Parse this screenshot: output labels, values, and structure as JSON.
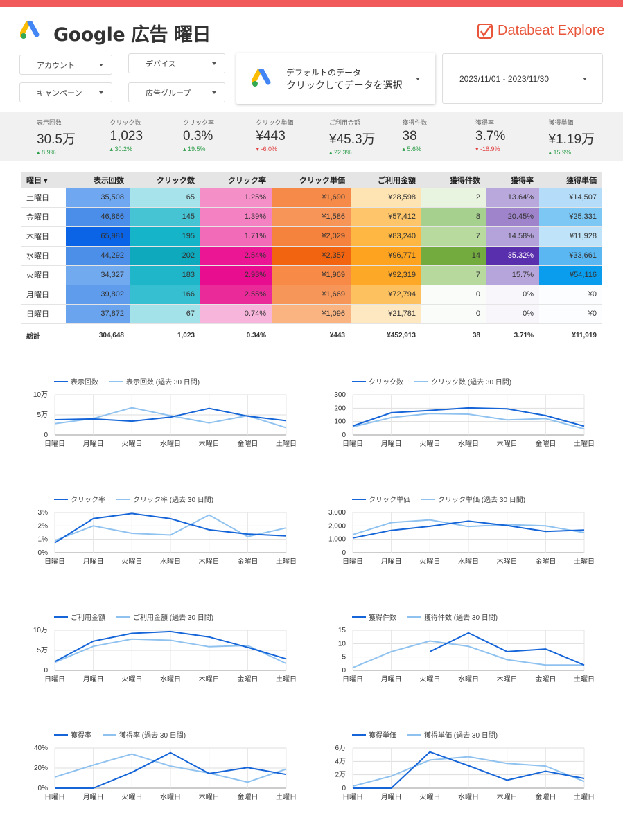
{
  "header": {
    "title": "Google 広告 曜日",
    "brand": "Databeat Explore"
  },
  "filters": {
    "account": "アカウント",
    "device": "デバイス",
    "campaign": "キャンペーン",
    "adgroup": "広告グループ"
  },
  "datasource": {
    "line1": "デフォルトのデータ",
    "line2": "クリックしてデータを選択"
  },
  "date_range": "2023/11/01 - 2023/11/30",
  "kpis": [
    {
      "label": "表示回数",
      "value": "30.5万",
      "delta": "8.9%",
      "dir": "up"
    },
    {
      "label": "クリック数",
      "value": "1,023",
      "delta": "30.2%",
      "dir": "up"
    },
    {
      "label": "クリック率",
      "value": "0.3%",
      "delta": "19.5%",
      "dir": "up"
    },
    {
      "label": "クリック単価",
      "value": "¥443",
      "delta": "-6.0%",
      "dir": "down"
    },
    {
      "label": "ご利用金額",
      "value": "¥45.3万",
      "delta": "22.3%",
      "dir": "up"
    },
    {
      "label": "獲得件数",
      "value": "38",
      "delta": "5.6%",
      "dir": "up"
    },
    {
      "label": "獲得率",
      "value": "3.7%",
      "delta": "-18.9%",
      "dir": "down"
    },
    {
      "label": "獲得単価",
      "value": "¥1.19万",
      "delta": "15.9%",
      "dir": "up"
    }
  ],
  "table": {
    "headers": [
      "曜日",
      "表示回数",
      "クリック数",
      "クリック率",
      "クリック単価",
      "ご利用金額",
      "獲得件数",
      "獲得率",
      "獲得単価"
    ],
    "sort_icon": "sort-desc-icon",
    "rows": [
      [
        "土曜日",
        "35,508",
        "65",
        "1.25%",
        "¥1,690",
        "¥28,598",
        "2",
        "13.64%",
        "¥14,507"
      ],
      [
        "金曜日",
        "46,866",
        "145",
        "1.39%",
        "¥1,586",
        "¥57,412",
        "8",
        "20.45%",
        "¥25,331"
      ],
      [
        "木曜日",
        "65,981",
        "195",
        "1.71%",
        "¥2,029",
        "¥83,240",
        "7",
        "14.58%",
        "¥11,928"
      ],
      [
        "水曜日",
        "44,292",
        "202",
        "2.54%",
        "¥2,357",
        "¥96,771",
        "14",
        "35.32%",
        "¥33,661"
      ],
      [
        "火曜日",
        "34,327",
        "183",
        "2.93%",
        "¥1,969",
        "¥92,319",
        "7",
        "15.7%",
        "¥54,116"
      ],
      [
        "月曜日",
        "39,802",
        "166",
        "2.55%",
        "¥1,669",
        "¥72,794",
        "0",
        "0%",
        "¥0"
      ],
      [
        "日曜日",
        "37,872",
        "67",
        "0.74%",
        "¥1,096",
        "¥21,781",
        "0",
        "0%",
        "¥0"
      ]
    ],
    "fills": [
      [
        "#6fa8f0",
        "#a6e3ea",
        "#f58fc8",
        "#f68b49",
        "#fee3b3",
        "#e8f3e0",
        "#b9a8dc",
        "#b5dcf8"
      ],
      [
        "#4a8ee9",
        "#47c4d4",
        "#f482c3",
        "#f79458",
        "#fec56a",
        "#a6d08e",
        "#9f83cb",
        "#7cc7f3"
      ],
      [
        "#0b63e6",
        "#15b4c8",
        "#f26bb9",
        "#f5823d",
        "#fdb742",
        "#b9da9f",
        "#b4a3da",
        "#bfe4f9"
      ],
      [
        "#4c8fe9",
        "#0ea9bd",
        "#ea1693",
        "#f26410",
        "#fda320",
        "#74ab3f",
        "#5a2fad",
        "#5ab7f1"
      ],
      [
        "#72aaf0",
        "#20b6c9",
        "#e80d8e",
        "#f68a46",
        "#fda827",
        "#b8d99d",
        "#b6a5da",
        "#0b9ded"
      ],
      [
        "#5f9dec",
        "#35bfd0",
        "#ea2a99",
        "#f79659",
        "#fec15f",
        "#fafcf9",
        "#f8f6fb",
        "#fbfdff"
      ],
      [
        "#6aa4ee",
        "#a4e2e9",
        "#f8b5db",
        "#f9b482",
        "#fee8c2",
        "#fafcf9",
        "#f8f6fb",
        "#fbfdff"
      ]
    ],
    "totals": [
      "総計",
      "304,648",
      "1,023",
      "0.34%",
      "¥443",
      "¥452,913",
      "38",
      "3.71%",
      "¥11,919"
    ]
  },
  "colors": {
    "current": "#1565d8",
    "previous": "#90c2f0",
    "topbar": "#f15a5a"
  },
  "chart_data": [
    {
      "type": "line",
      "x": [
        "日曜日",
        "月曜日",
        "火曜日",
        "水曜日",
        "木曜日",
        "金曜日",
        "土曜日"
      ],
      "ylim": [
        0,
        100000
      ],
      "yticks": [
        "0",
        "5万",
        "10万"
      ],
      "series": [
        {
          "name": "表示回数",
          "values": [
            37872,
            39802,
            34327,
            44292,
            65981,
            46866,
            35508
          ]
        },
        {
          "name": "表示回数 (過去 30 日間)",
          "values": [
            28000,
            41000,
            68000,
            48000,
            30000,
            48000,
            18000
          ]
        }
      ]
    },
    {
      "type": "line",
      "x": [
        "日曜日",
        "月曜日",
        "火曜日",
        "水曜日",
        "木曜日",
        "金曜日",
        "土曜日"
      ],
      "ylim": [
        0,
        300
      ],
      "yticks": [
        "0",
        "100",
        "200",
        "300"
      ],
      "series": [
        {
          "name": "クリック数",
          "values": [
            67,
            166,
            183,
            202,
            195,
            145,
            65
          ]
        },
        {
          "name": "クリック数 (過去 30 日間)",
          "values": [
            60,
            130,
            160,
            155,
            112,
            122,
            45
          ]
        }
      ]
    },
    {
      "type": "line",
      "x": [
        "日曜日",
        "月曜日",
        "火曜日",
        "水曜日",
        "木曜日",
        "金曜日",
        "土曜日"
      ],
      "ylim": [
        0,
        3
      ],
      "yticks": [
        "0%",
        "1%",
        "2%",
        "3%"
      ],
      "series": [
        {
          "name": "クリック率",
          "values": [
            0.74,
            2.55,
            2.93,
            2.54,
            1.71,
            1.39,
            1.25
          ]
        },
        {
          "name": "クリック率 (過去 30 日間)",
          "values": [
            0.9,
            2.0,
            1.45,
            1.32,
            2.82,
            1.2,
            1.85
          ]
        }
      ]
    },
    {
      "type": "line",
      "x": [
        "日曜日",
        "月曜日",
        "火曜日",
        "水曜日",
        "木曜日",
        "金曜日",
        "土曜日"
      ],
      "ylim": [
        0,
        3000
      ],
      "yticks": [
        "0",
        "1,000",
        "2,000",
        "3,000"
      ],
      "series": [
        {
          "name": "クリック単価",
          "values": [
            1096,
            1669,
            1969,
            2357,
            2029,
            1586,
            1690
          ]
        },
        {
          "name": "クリック単価 (過去 30 日間)",
          "values": [
            1350,
            2250,
            2450,
            1950,
            2100,
            2000,
            1500
          ]
        }
      ]
    },
    {
      "type": "line",
      "x": [
        "日曜日",
        "月曜日",
        "火曜日",
        "水曜日",
        "木曜日",
        "金曜日",
        "土曜日"
      ],
      "ylim": [
        0,
        100000
      ],
      "yticks": [
        "0",
        "5万",
        "10万"
      ],
      "series": [
        {
          "name": "ご利用金額",
          "values": [
            21781,
            72794,
            92319,
            96771,
            83240,
            57412,
            28598
          ]
        },
        {
          "name": "ご利用金額 (過去 30 日間)",
          "values": [
            20000,
            60000,
            78000,
            75000,
            59000,
            62000,
            17000
          ]
        }
      ]
    },
    {
      "type": "line",
      "x": [
        "日曜日",
        "月曜日",
        "火曜日",
        "水曜日",
        "木曜日",
        "金曜日",
        "土曜日"
      ],
      "ylim": [
        0,
        15
      ],
      "yticks": [
        "0",
        "5",
        "10",
        "15"
      ],
      "series": [
        {
          "name": "獲得件数",
          "values": [
            null,
            null,
            7,
            14,
            7,
            8,
            2
          ]
        },
        {
          "name": "獲得件数 (過去 30 日間)",
          "values": [
            1,
            7,
            11,
            9,
            4,
            2,
            2
          ]
        }
      ]
    },
    {
      "type": "line",
      "x": [
        "日曜日",
        "月曜日",
        "火曜日",
        "水曜日",
        "木曜日",
        "金曜日",
        "土曜日"
      ],
      "ylim": [
        0,
        40
      ],
      "yticks": [
        "0%",
        "20%",
        "40%"
      ],
      "series": [
        {
          "name": "獲得率",
          "values": [
            0,
            0,
            15.7,
            35.32,
            14.58,
            20.45,
            13.64
          ]
        },
        {
          "name": "獲得率 (過去 30 日間)",
          "values": [
            11,
            23,
            34,
            22,
            15,
            6,
            19
          ]
        }
      ]
    },
    {
      "type": "line",
      "x": [
        "日曜日",
        "月曜日",
        "火曜日",
        "水曜日",
        "木曜日",
        "金曜日",
        "土曜日"
      ],
      "ylim": [
        0,
        60000
      ],
      "yticks": [
        "0",
        "2万",
        "4万",
        "6万"
      ],
      "series": [
        {
          "name": "獲得単価",
          "values": [
            0,
            0,
            54116,
            33661,
            11928,
            25331,
            14507
          ]
        },
        {
          "name": "獲得単価 (過去 30 日間)",
          "values": [
            3000,
            18000,
            42000,
            47000,
            37000,
            33000,
            10000
          ]
        }
      ]
    }
  ]
}
